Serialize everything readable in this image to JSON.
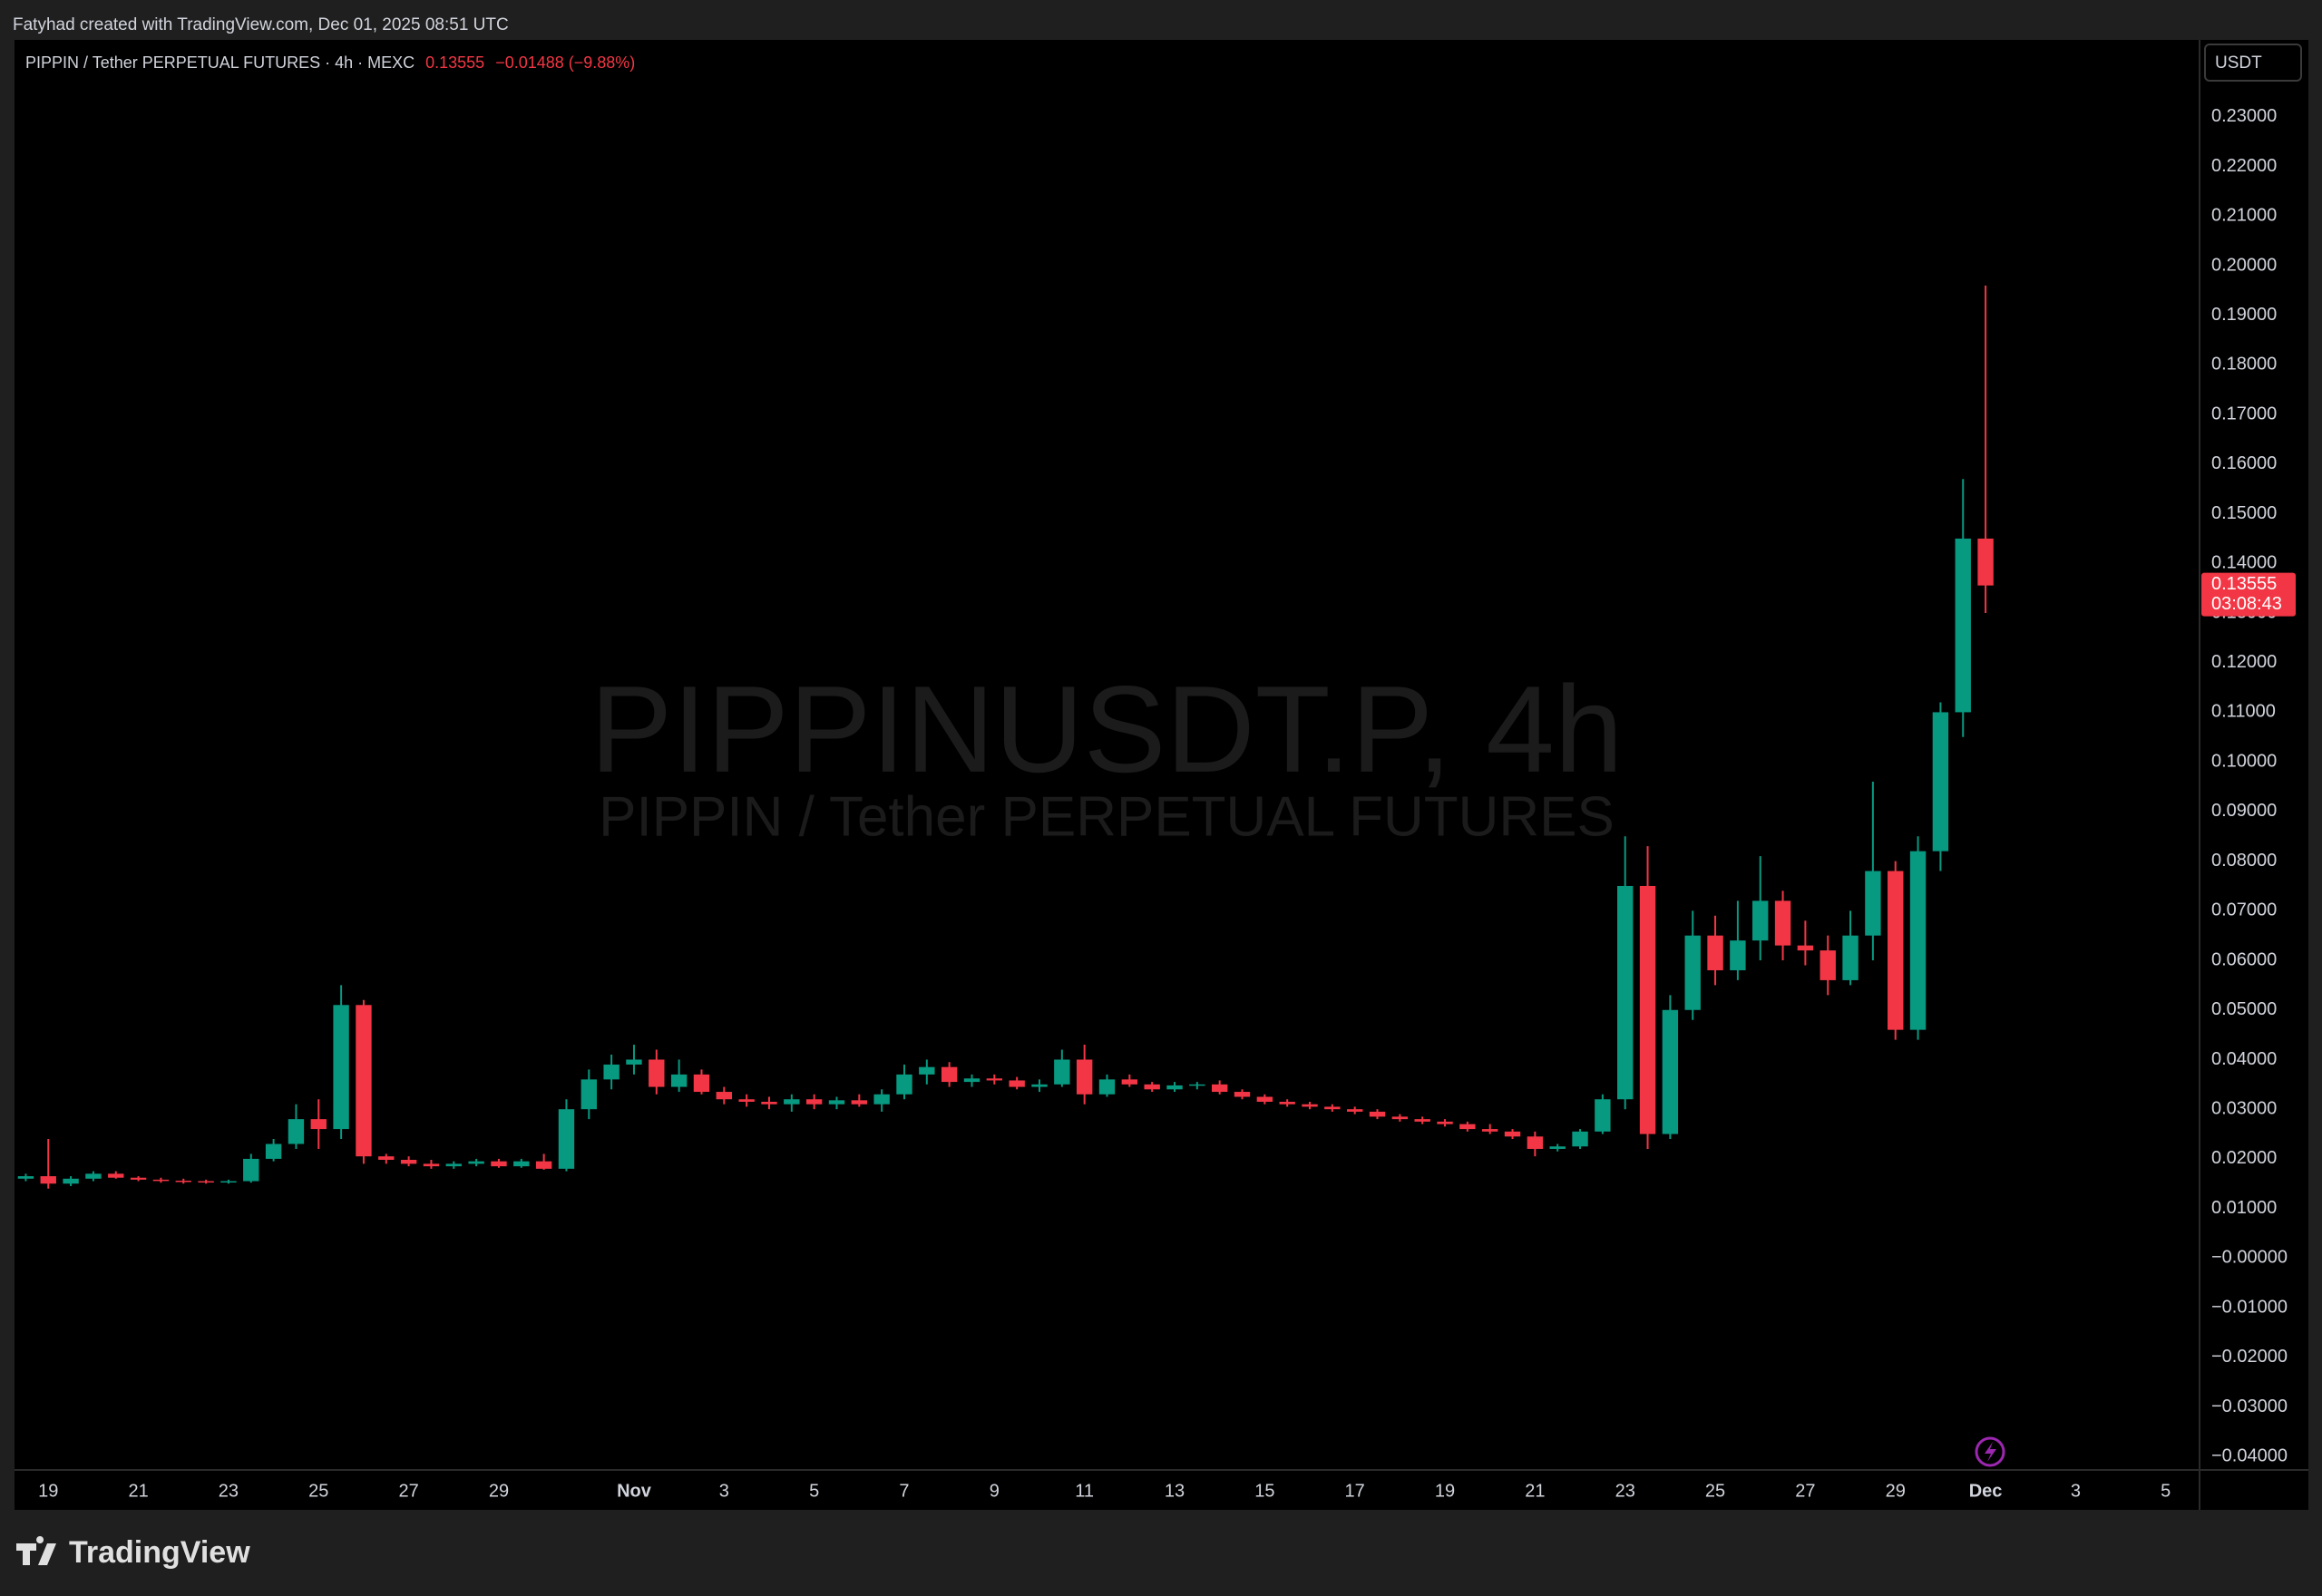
{
  "header": {
    "attribution": "Fatyhad created with TradingView.com, Dec 01, 2025 08:51 UTC"
  },
  "footer": {
    "brand": "TradingView"
  },
  "chart_data": {
    "type": "candlestick",
    "title": "PIPPIN / Tether PERPETUAL FUTURES · 4h · MEXC",
    "change": "−0.01488 (−9.88%)",
    "countdown": "03:08:43",
    "currency": "USDT",
    "watermark": "PIPPINUSDT.P, 4h",
    "watermark_subtitle": "PIPPIN / Tether PERPETUAL FUTURES",
    "up_color": "#089981",
    "down_color": "#f23645",
    "grid": false,
    "categories": [
      null,
      "19",
      null,
      null,
      null,
      "21",
      null,
      null,
      null,
      "23",
      null,
      null,
      null,
      "25",
      null,
      null,
      null,
      "27",
      null,
      null,
      null,
      "29",
      null,
      null,
      null,
      null,
      null,
      "Nov",
      null,
      null,
      null,
      "3",
      null,
      null,
      null,
      "5",
      null,
      null,
      null,
      "7",
      null,
      null,
      null,
      "9",
      null,
      null,
      null,
      "11",
      null,
      null,
      null,
      "13",
      null,
      null,
      null,
      "15",
      null,
      null,
      null,
      "17",
      null,
      null,
      null,
      "19",
      null,
      null,
      null,
      "21",
      null,
      null,
      null,
      "23",
      null,
      null,
      null,
      "25",
      null,
      null,
      null,
      "27",
      null,
      null,
      null,
      "29",
      null,
      null,
      null,
      "Dec",
      null,
      null,
      null,
      "3",
      null,
      null,
      null,
      "5",
      null
    ],
    "open": [
      0.016,
      0.0165,
      0.015,
      0.016,
      0.017,
      0.0162,
      0.0158,
      0.0156,
      0.0155,
      0.0154,
      0.0155,
      0.02,
      0.023,
      0.028,
      0.026,
      0.051,
      0.0205,
      0.0198,
      0.019,
      0.0185,
      0.019,
      0.0195,
      0.0185,
      0.0195,
      0.018,
      0.03,
      0.036,
      0.039,
      0.04,
      0.0345,
      0.037,
      0.0335,
      0.032,
      0.0315,
      0.031,
      0.032,
      0.031,
      0.0318,
      0.031,
      0.033,
      0.037,
      0.0385,
      0.0355,
      0.0362,
      0.0358,
      0.0345,
      0.035,
      0.04,
      0.033,
      0.036,
      0.035,
      0.034,
      0.0348,
      0.035,
      0.0335,
      0.0325,
      0.0315,
      0.031,
      0.0305,
      0.03,
      0.0295,
      0.0285,
      0.028,
      0.0275,
      0.027,
      0.026,
      0.0255,
      0.0245,
      0.022,
      0.0225,
      0.0255,
      0.032,
      0.075,
      0.025,
      0.05,
      0.065,
      0.058,
      0.064,
      0.072,
      0.063,
      0.062,
      0.056,
      0.065,
      0.078,
      0.046,
      0.082,
      0.11,
      0.145,
      null,
      null,
      null,
      null,
      null,
      null,
      null,
      null,
      null
    ],
    "high": [
      0.017,
      0.024,
      0.0165,
      0.0175,
      0.0175,
      0.0165,
      0.0162,
      0.016,
      0.0158,
      0.0158,
      0.021,
      0.024,
      0.031,
      0.032,
      0.055,
      0.052,
      0.021,
      0.0205,
      0.0198,
      0.0195,
      0.02,
      0.02,
      0.02,
      0.021,
      0.032,
      0.038,
      0.041,
      0.043,
      0.042,
      0.04,
      0.038,
      0.0345,
      0.033,
      0.0325,
      0.033,
      0.033,
      0.0325,
      0.033,
      0.034,
      0.039,
      0.04,
      0.0395,
      0.037,
      0.037,
      0.0365,
      0.036,
      0.042,
      0.043,
      0.037,
      0.037,
      0.0355,
      0.0355,
      0.0355,
      0.0358,
      0.034,
      0.033,
      0.032,
      0.0315,
      0.031,
      0.0305,
      0.03,
      0.029,
      0.0285,
      0.028,
      0.0275,
      0.027,
      0.026,
      0.0255,
      0.023,
      0.026,
      0.033,
      0.085,
      0.083,
      0.053,
      0.07,
      0.069,
      0.072,
      0.081,
      0.074,
      0.068,
      0.065,
      0.07,
      0.096,
      0.08,
      0.085,
      0.112,
      0.157,
      0.196,
      null,
      null,
      null,
      null,
      null,
      null,
      null,
      null,
      null
    ],
    "low": [
      0.0155,
      0.014,
      0.0145,
      0.0155,
      0.016,
      0.0155,
      0.0152,
      0.015,
      0.015,
      0.015,
      0.0152,
      0.0195,
      0.022,
      0.022,
      0.024,
      0.019,
      0.019,
      0.0185,
      0.018,
      0.018,
      0.0185,
      0.0182,
      0.0182,
      0.0178,
      0.0175,
      0.028,
      0.034,
      0.037,
      0.033,
      0.0335,
      0.033,
      0.031,
      0.0305,
      0.03,
      0.0295,
      0.03,
      0.03,
      0.0305,
      0.0295,
      0.032,
      0.035,
      0.0345,
      0.0345,
      0.035,
      0.034,
      0.0335,
      0.0345,
      0.031,
      0.0325,
      0.0345,
      0.0335,
      0.0335,
      0.034,
      0.033,
      0.032,
      0.031,
      0.0305,
      0.03,
      0.0295,
      0.029,
      0.028,
      0.0275,
      0.027,
      0.0265,
      0.0255,
      0.025,
      0.024,
      0.0205,
      0.0215,
      0.022,
      0.025,
      0.03,
      0.022,
      0.024,
      0.048,
      0.055,
      0.056,
      0.06,
      0.06,
      0.059,
      0.053,
      0.055,
      0.06,
      0.044,
      0.044,
      0.078,
      0.105,
      0.13,
      null,
      null,
      null,
      null,
      null,
      null,
      null,
      null,
      null
    ],
    "close": [
      0.0165,
      0.015,
      0.016,
      0.017,
      0.0162,
      0.0158,
      0.0156,
      0.0155,
      0.0154,
      0.0155,
      0.02,
      0.023,
      0.028,
      0.026,
      0.051,
      0.0205,
      0.0198,
      0.019,
      0.0185,
      0.019,
      0.0195,
      0.0185,
      0.0195,
      0.018,
      0.03,
      0.036,
      0.039,
      0.04,
      0.0345,
      0.037,
      0.0335,
      0.032,
      0.0315,
      0.031,
      0.032,
      0.031,
      0.0318,
      0.031,
      0.033,
      0.037,
      0.0385,
      0.0355,
      0.0362,
      0.0358,
      0.0345,
      0.035,
      0.04,
      0.033,
      0.036,
      0.035,
      0.034,
      0.0348,
      0.035,
      0.0335,
      0.0325,
      0.0315,
      0.031,
      0.0305,
      0.03,
      0.0295,
      0.0285,
      0.028,
      0.0275,
      0.027,
      0.026,
      0.0255,
      0.0245,
      0.022,
      0.0225,
      0.0255,
      0.032,
      0.075,
      0.025,
      0.05,
      0.065,
      0.058,
      0.064,
      0.072,
      0.063,
      0.062,
      0.056,
      0.065,
      0.078,
      0.046,
      0.082,
      0.11,
      0.145,
      0.13555,
      null,
      null,
      null,
      null,
      null,
      null,
      null,
      null,
      null
    ],
    "ylim": [
      -0.0427,
      0.2455
    ],
    "yticks": [
      {
        "value": 0.23,
        "label": "0.23000"
      },
      {
        "value": 0.22,
        "label": "0.22000"
      },
      {
        "value": 0.21,
        "label": "0.21000"
      },
      {
        "value": 0.2,
        "label": "0.20000"
      },
      {
        "value": 0.19,
        "label": "0.19000"
      },
      {
        "value": 0.18,
        "label": "0.18000"
      },
      {
        "value": 0.17,
        "label": "0.17000"
      },
      {
        "value": 0.16,
        "label": "0.16000"
      },
      {
        "value": 0.15,
        "label": "0.15000"
      },
      {
        "value": 0.14,
        "label": "0.14000"
      },
      {
        "value": 0.13,
        "label": "0.13000"
      },
      {
        "value": 0.12,
        "label": "0.12000"
      },
      {
        "value": 0.11,
        "label": "0.11000"
      },
      {
        "value": 0.1,
        "label": "0.10000"
      },
      {
        "value": 0.09,
        "label": "0.09000"
      },
      {
        "value": 0.08,
        "label": "0.08000"
      },
      {
        "value": 0.07,
        "label": "0.07000"
      },
      {
        "value": 0.06,
        "label": "0.06000"
      },
      {
        "value": 0.05,
        "label": "0.05000"
      },
      {
        "value": 0.04,
        "label": "0.04000"
      },
      {
        "value": 0.03,
        "label": "0.03000"
      },
      {
        "value": 0.02,
        "label": "0.02000"
      },
      {
        "value": 0.01,
        "label": "0.01000"
      },
      {
        "value": 0,
        "label": "−0.00000"
      },
      {
        "value": -0.01,
        "label": "−0.01000"
      },
      {
        "value": -0.02,
        "label": "−0.02000"
      },
      {
        "value": -0.03,
        "label": "−0.03000"
      },
      {
        "value": -0.04,
        "label": "−0.04000"
      }
    ]
  }
}
